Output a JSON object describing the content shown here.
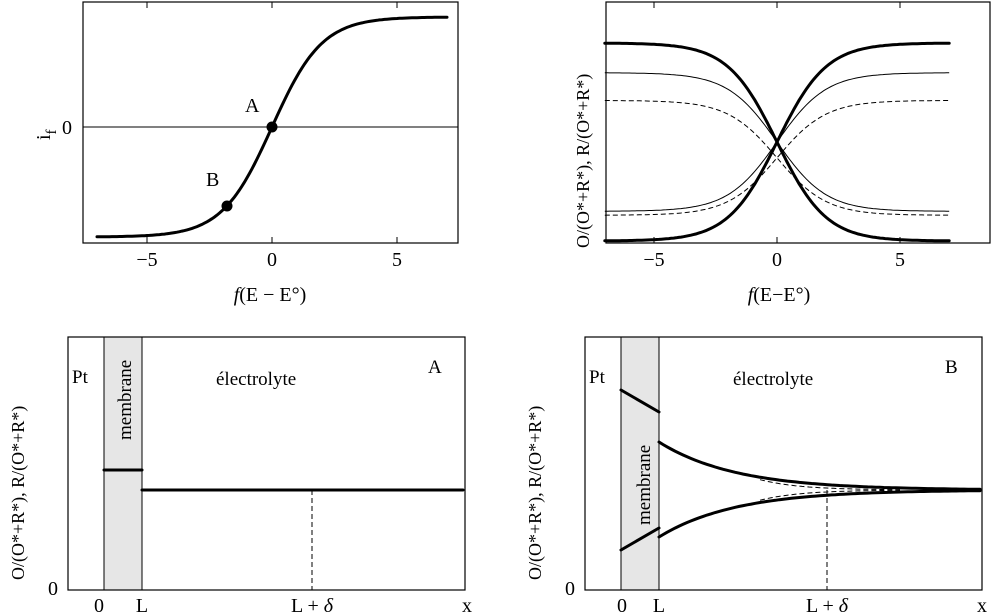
{
  "chart_data": [
    {
      "type": "line",
      "panel": "top-left",
      "xlabel_f": "f",
      "xlabel_rest": "(E − E°)",
      "ylabel_main": "i",
      "ylabel_sub": "f",
      "xlim": [
        -7,
        7
      ],
      "ylim": [
        -1.1,
        1.1
      ],
      "xticks": [
        -5,
        0,
        5
      ],
      "xtick_labels": [
        "−5",
        "0",
        "5"
      ],
      "yticks": [
        0
      ],
      "ytick_labels": [
        "0"
      ],
      "series": [
        {
          "style": "thick",
          "function": "tanh(x/2)",
          "x": [
            -7,
            -6,
            -5,
            -4,
            -3,
            -2,
            -1,
            0,
            1,
            2,
            3,
            4,
            5,
            6,
            7
          ],
          "values": [
            -0.999,
            -0.995,
            -0.987,
            -0.964,
            -0.905,
            -0.762,
            -0.462,
            0,
            0.462,
            0.762,
            0.905,
            0.964,
            0.987,
            0.995,
            0.999
          ]
        }
      ],
      "points": [
        {
          "label": "A",
          "x": 0,
          "y": 0
        },
        {
          "label": "B",
          "x": -1.7,
          "y": -0.69
        }
      ],
      "grid": false
    },
    {
      "type": "line",
      "panel": "top-right",
      "xlabel_f": "f",
      "xlabel_rest": "(E−E°)",
      "ylabel": "O/(O*+R*), R/(O*+R*)",
      "xlim": [
        -7,
        7
      ],
      "xticks": [
        -5,
        0,
        5
      ],
      "xtick_labels": [
        "−5",
        "0",
        "5"
      ],
      "series": [
        {
          "style": "thick",
          "rising": true,
          "low": 0.0,
          "high": 1.0,
          "scale": 1.0
        },
        {
          "style": "thick",
          "rising": false,
          "low": 0.0,
          "high": 1.0,
          "scale": 1.0
        },
        {
          "style": "thin",
          "rising": true,
          "low": 0.15,
          "high": 0.85,
          "scale": 1.0
        },
        {
          "style": "thin",
          "rising": false,
          "low": 0.15,
          "high": 0.85,
          "scale": 1.0
        },
        {
          "style": "dashed",
          "rising": true,
          "low": 0.13,
          "high": 0.71,
          "scale": 1.0
        },
        {
          "style": "dashed",
          "rising": false,
          "low": 0.13,
          "high": 0.71,
          "scale": 1.0
        }
      ],
      "grid": false
    },
    {
      "type": "line",
      "panel": "bottom-left",
      "ylabel": "O/(O*+R*), R/(O*+R*)",
      "ytick_label": "0",
      "xtick_labels": [
        "0",
        "L",
        "L + ",
        "δ",
        "x"
      ],
      "regions": {
        "left": "Pt",
        "membrane": "membrane",
        "right": "électrolyte"
      },
      "corner_label": "A",
      "membrane_level": 0.55,
      "bulk_level": 0.5,
      "grid": false
    },
    {
      "type": "line",
      "panel": "bottom-right",
      "ylabel": "O/(O*+R*), R/(O*+R*)",
      "ytick_label": "0",
      "xtick_labels": [
        "0",
        "L",
        "L + ",
        "δ",
        "x"
      ],
      "regions": {
        "left": "Pt",
        "membrane": "membrane",
        "right": "électrolyte"
      },
      "corner_label": "B",
      "membrane_upper": [
        0.86,
        0.75
      ],
      "membrane_lower": [
        0.14,
        0.25
      ],
      "electrolyte_upper_start": 0.64,
      "electrolyte_lower_start": 0.36,
      "bulk_level": 0.5,
      "grid": false
    }
  ]
}
